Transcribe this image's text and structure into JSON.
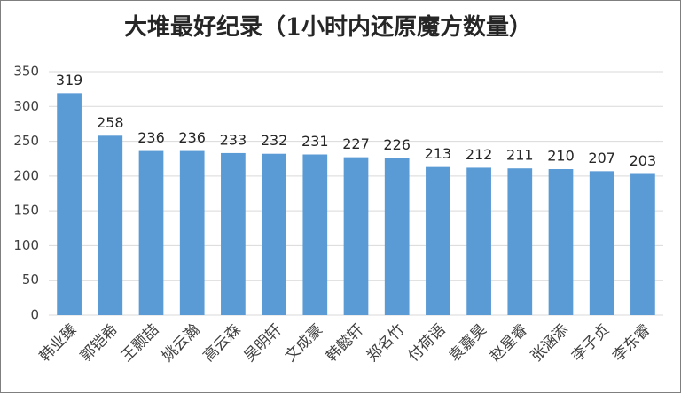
{
  "chart_data": {
    "type": "bar",
    "title": "大堆最好纪录（1小时内还原魔方数量）",
    "categories": [
      "韩业臻",
      "郭铠希",
      "王颢喆",
      "姚云瀚",
      "高云森",
      "吴明轩",
      "文成豪",
      "韩懿轩",
      "郑名竹",
      "付荷语",
      "袁嘉昊",
      "赵星睿",
      "张涵添",
      "李子贞",
      "李东睿"
    ],
    "values": [
      319,
      258,
      236,
      236,
      233,
      232,
      231,
      227,
      226,
      213,
      212,
      211,
      210,
      207,
      203
    ],
    "color": "#5b9bd5",
    "ylim": [
      0,
      350
    ],
    "yticks": [
      0,
      50,
      100,
      150,
      200,
      250,
      300,
      350
    ],
    "grid": true
  }
}
